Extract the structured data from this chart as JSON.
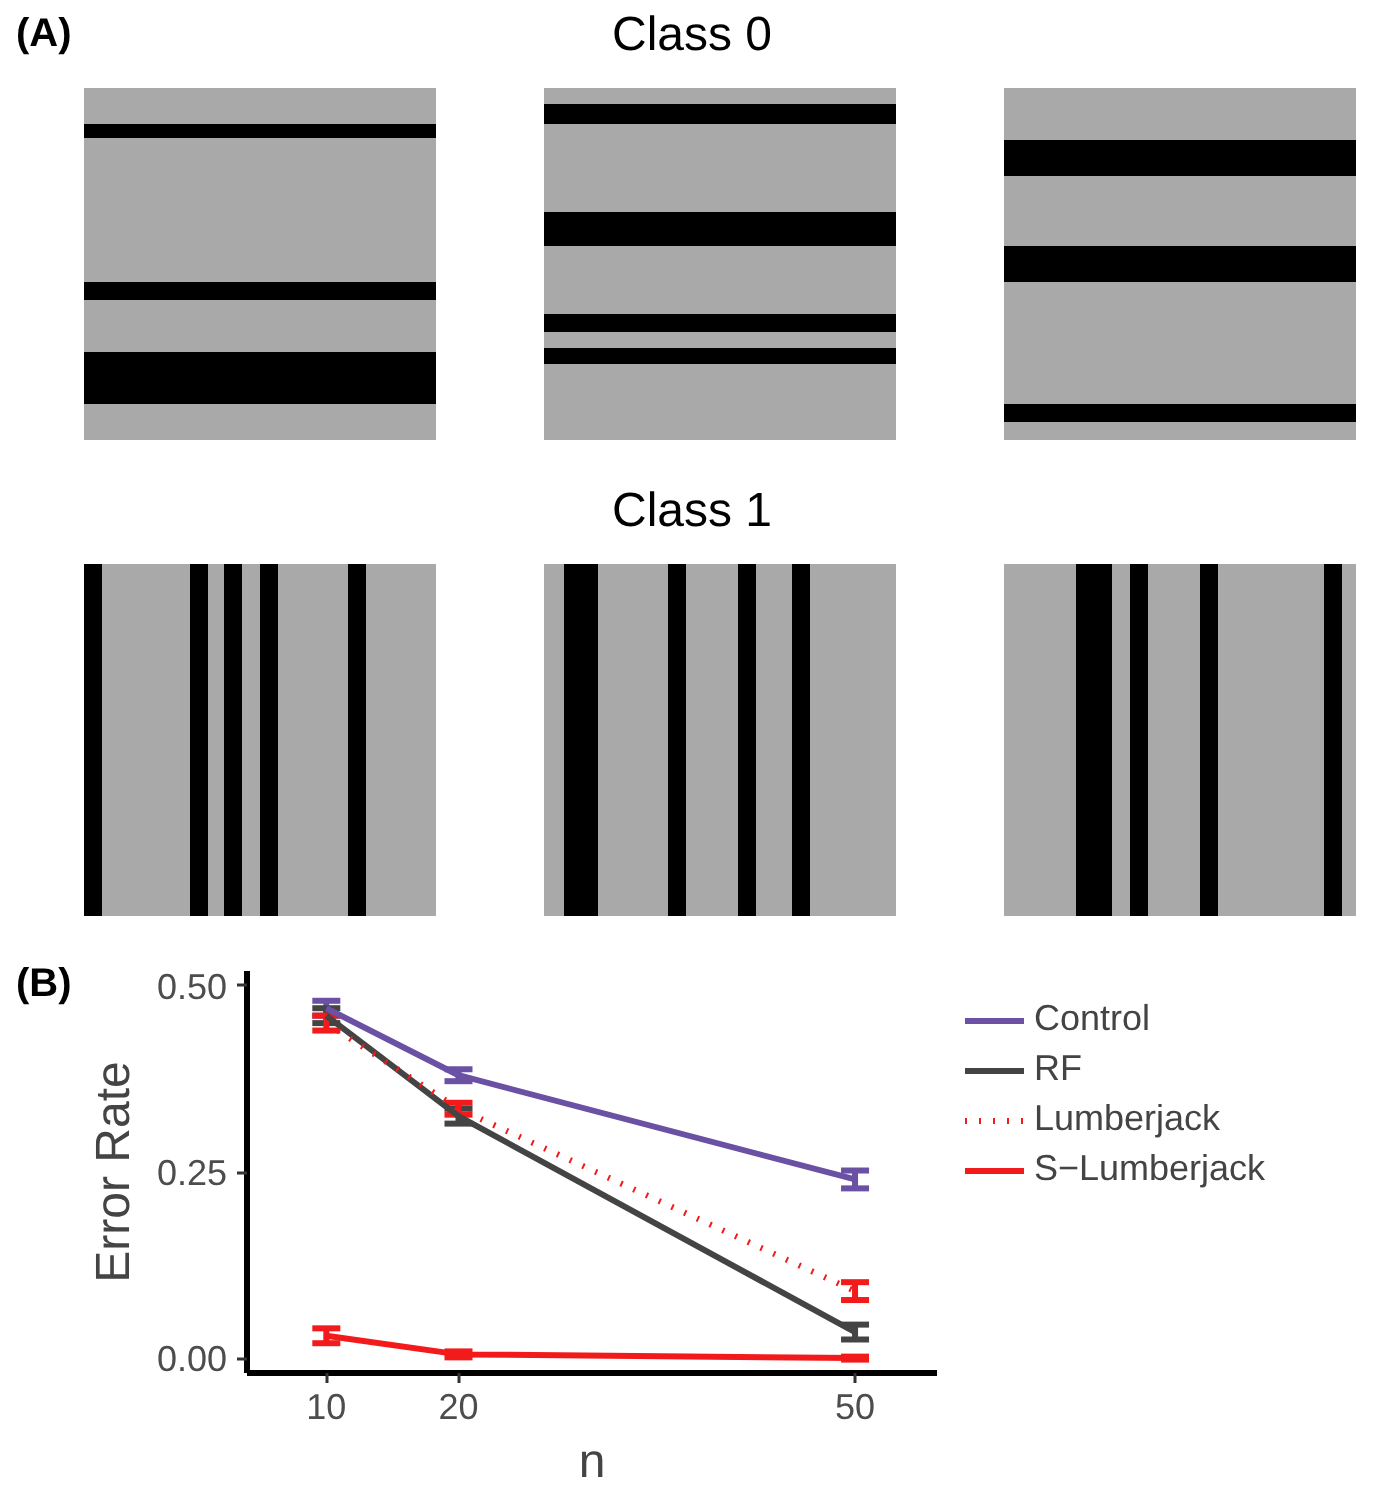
{
  "chart_data": {
    "type": "line",
    "annotations": [
      "(A)",
      "Class 0",
      "Class 1",
      "(B)"
    ],
    "xlabel": "n",
    "ylabel": "Error Rate",
    "x": [
      10,
      20,
      50
    ],
    "series": [
      {
        "name": "Control",
        "color": "#6a51a3",
        "values": [
          0.47,
          0.38,
          0.24
        ],
        "errors": [
          0.01,
          0.008,
          0.012
        ]
      },
      {
        "name": "RF",
        "color": "#444444",
        "values": [
          0.46,
          0.325,
          0.035
        ],
        "errors": [
          0.01,
          0.01,
          0.01
        ]
      },
      {
        "name": "Lumberjack",
        "color": "#f21a1a",
        "values": [
          0.45,
          0.335,
          0.09
        ],
        "errors": [
          0.01,
          0.008,
          0.012
        ],
        "line_style": "dotted"
      },
      {
        "name": "S−Lumberjack",
        "color": "#f21a1a",
        "values": [
          0.03,
          0.005,
          0.0
        ],
        "errors": [
          0.01,
          0.004,
          0.002
        ]
      }
    ],
    "xlim": [
      4,
      56.2
    ],
    "ylim": [
      -0.02,
      0.52
    ],
    "xticks": [
      10,
      20,
      50
    ],
    "yticks": [
      {
        "value": 0,
        "label": "0.00"
      },
      {
        "value": 0.25,
        "label": "0.25"
      },
      {
        "value": 0.5,
        "label": "0.50"
      }
    ],
    "grid": false,
    "legend": "right",
    "marker": "none",
    "line_style": "solid"
  }
}
